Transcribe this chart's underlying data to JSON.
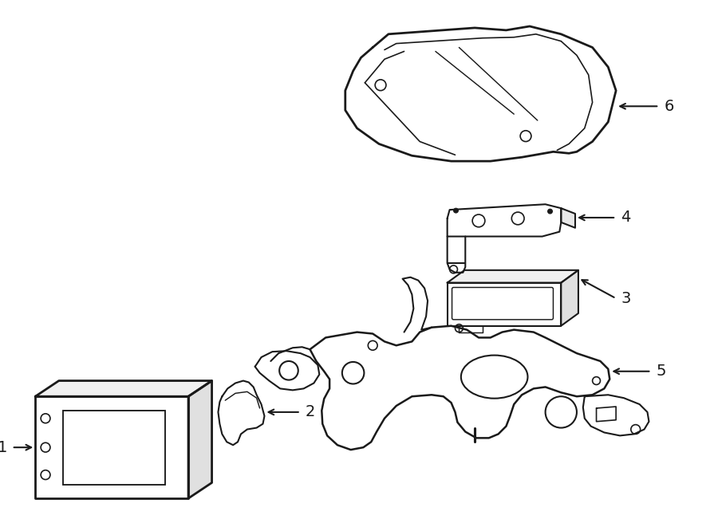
{
  "background_color": "#ffffff",
  "line_color": "#1a1a1a",
  "line_width": 1.5,
  "label_fontsize": 13,
  "fig_width": 9.0,
  "fig_height": 6.61,
  "dpi": 100
}
